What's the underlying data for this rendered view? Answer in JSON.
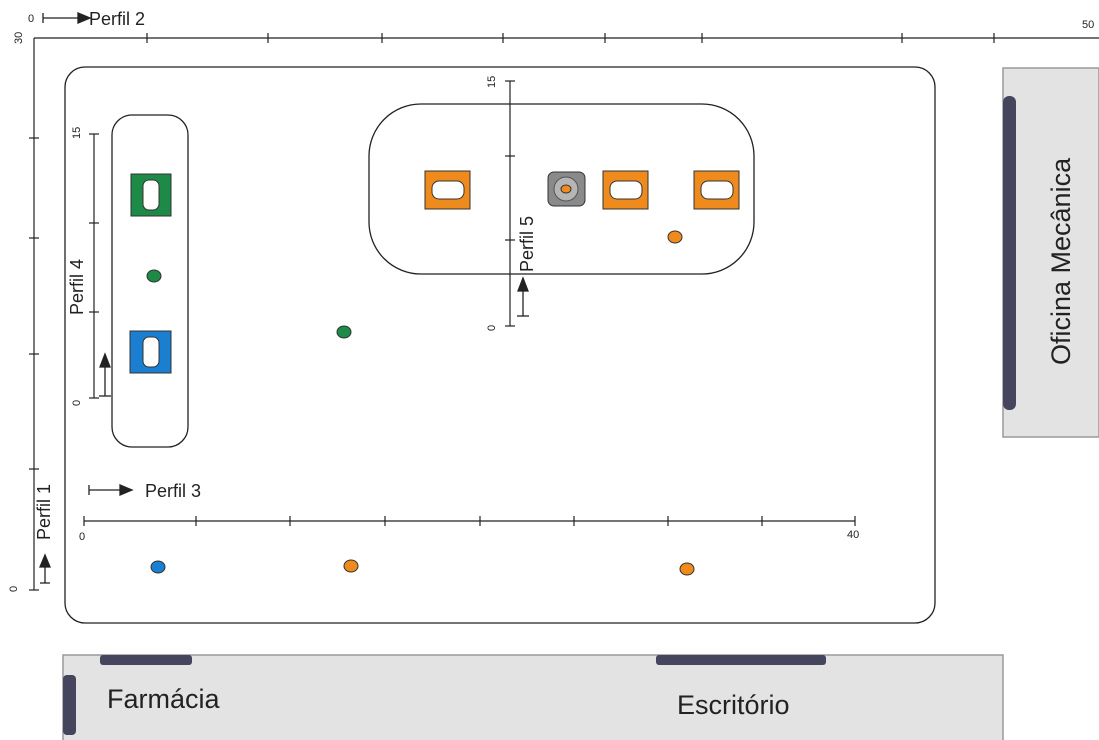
{
  "profiles": {
    "perfil1": "Perfil 1",
    "perfil2": "Perfil 2",
    "perfil3": "Perfil 3",
    "perfil4": "Perfil 4",
    "perfil5": "Perfil 5"
  },
  "scales": {
    "x_top": {
      "start": "0",
      "end": "50"
    },
    "y_left": {
      "start": "0",
      "end": "30"
    },
    "x_bottom": {
      "start": "0",
      "end": "40"
    },
    "y_inner_left": {
      "start": "0",
      "end": "15"
    },
    "y_inner_right": {
      "start": "0",
      "end": "15"
    }
  },
  "buildings": {
    "oficina": "Oficina Mecânica",
    "farmacia": "Farmácia",
    "escritorio": "Escritório"
  },
  "colors": {
    "green": "#1e8a47",
    "blue": "#1a7fd0",
    "orange": "#ef8a1c",
    "gray": "#8a8a8a",
    "door": "#45455e",
    "building_fill": "#e3e3e3"
  }
}
